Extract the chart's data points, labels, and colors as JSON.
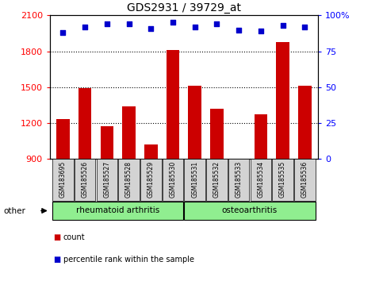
{
  "title": "GDS2931 / 39729_at",
  "samples": [
    "GSM183695",
    "GSM185526",
    "GSM185527",
    "GSM185528",
    "GSM185529",
    "GSM185530",
    "GSM185531",
    "GSM185532",
    "GSM185533",
    "GSM185534",
    "GSM185535",
    "GSM185536"
  ],
  "counts": [
    1230,
    1490,
    1175,
    1340,
    1020,
    1810,
    1510,
    1320,
    870,
    1270,
    1880,
    1510
  ],
  "percentiles": [
    88,
    92,
    94,
    94,
    91,
    95,
    92,
    94,
    90,
    89,
    93,
    92
  ],
  "ylim_left": [
    900,
    2100
  ],
  "ylim_right": [
    0,
    100
  ],
  "yticks_left": [
    900,
    1200,
    1500,
    1800,
    2100
  ],
  "yticks_right": [
    0,
    25,
    50,
    75,
    100
  ],
  "gridlines": [
    1200,
    1500,
    1800
  ],
  "bar_color": "#CC0000",
  "dot_color": "#0000CC",
  "label_count": "count",
  "label_percentile": "percentile rank within the sample",
  "other_label": "other",
  "group1_label": "rheumatoid arthritis",
  "group1_range": [
    0,
    5
  ],
  "group2_label": "osteoarthritis",
  "group2_range": [
    6,
    11
  ],
  "group_color": "#90EE90",
  "sample_box_color": "#d3d3d3"
}
